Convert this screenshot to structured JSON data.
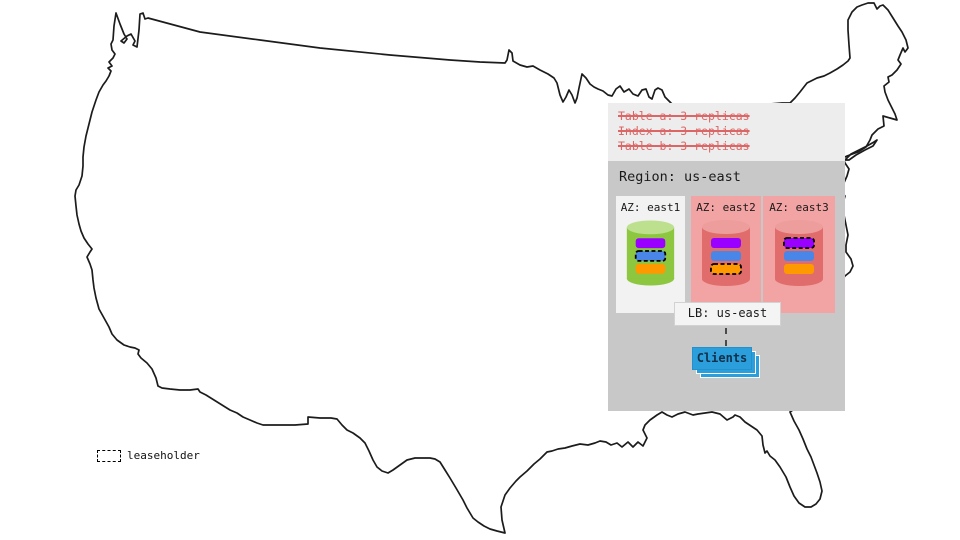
{
  "annotation": {
    "lines": [
      "Table a: 3 replicas",
      "Index a: 3 replicas",
      "Table b: 3 replicas"
    ]
  },
  "region": {
    "title": "Region: us-east",
    "azs": [
      {
        "id": "east1",
        "label": "AZ: east1",
        "theme": "gray",
        "cylinder": "green",
        "leaseholder_index": 1
      },
      {
        "id": "east2",
        "label": "AZ: east2",
        "theme": "red",
        "cylinder": "red",
        "leaseholder_index": 2
      },
      {
        "id": "east3",
        "label": "AZ: east3",
        "theme": "red",
        "cylinder": "red",
        "leaseholder_index": 0
      }
    ],
    "lb_label": "LB: us-east",
    "clients_label": "Clients"
  },
  "legend": {
    "label": "leaseholder"
  },
  "colors": {
    "replica_bars": [
      "#9900ff",
      "#4a86e8",
      "#ff9900"
    ],
    "green_cylinder_body": "#8dc63f",
    "green_cylinder_top": "#bce08e",
    "red_cylinder_body": "#e06c6c",
    "red_cylinder_top": "#ee9d9d",
    "az_pink": "#f2a3a3",
    "az_gray": "#f2f2f2",
    "annotation_red": "#dc6666",
    "clients_blue": "#2b9fdb",
    "panel_light": "#ededed",
    "panel_dark": "#c8c8c8",
    "map_stroke": "#1c1c1c"
  }
}
